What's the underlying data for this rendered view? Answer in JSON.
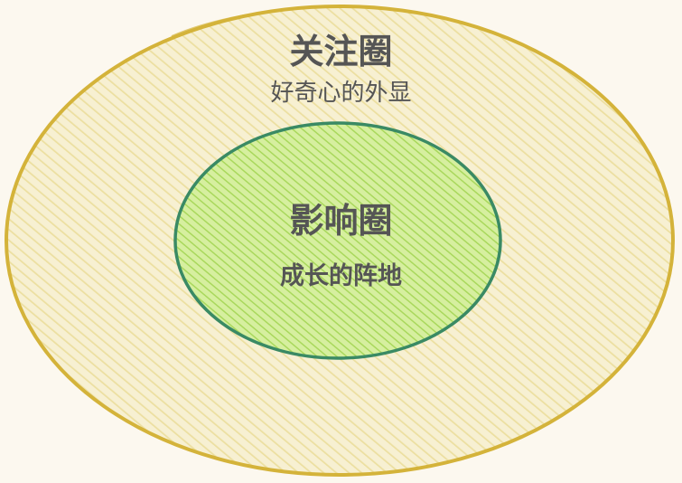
{
  "outer_circle": {
    "title": "关注圈",
    "subtitle": "好奇心的外显",
    "fill_color": "#f6efc8",
    "hatch_color": "#ecdfa0",
    "stroke_color": "#d4b33a"
  },
  "inner_circle": {
    "title": "影响圈",
    "subtitle": "成长的阵地",
    "fill_color": "#cbe98f",
    "hatch_color": "#a9d85c",
    "stroke_color": "#3a8a64"
  },
  "background_color": "#fcf8ef",
  "text_color": "#555555"
}
